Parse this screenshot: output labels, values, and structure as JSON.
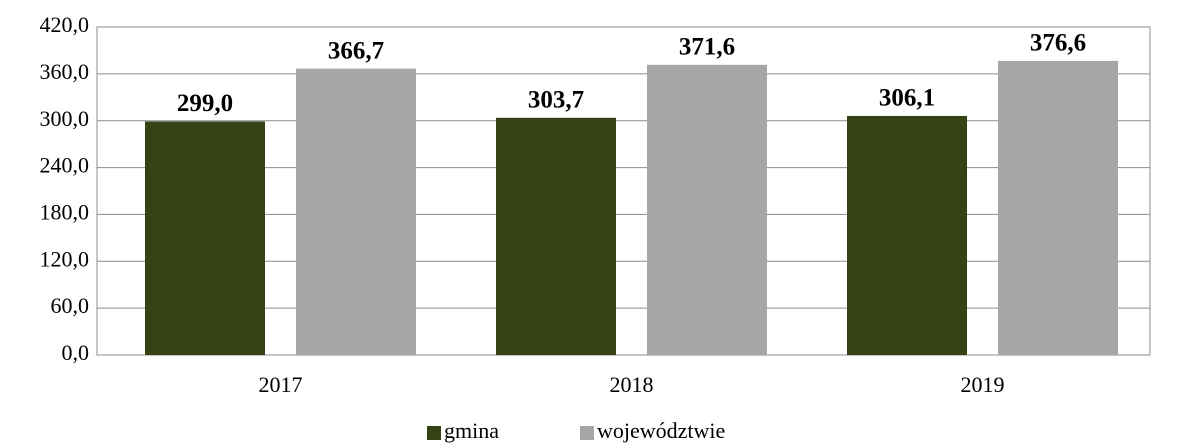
{
  "chart_data": {
    "type": "bar",
    "categories": [
      "2017",
      "2018",
      "2019"
    ],
    "series": [
      {
        "name": "gmina",
        "color": "#344214",
        "values": [
          299.0,
          303.7,
          306.1
        ],
        "value_labels": [
          "299,0",
          "303,7",
          "306,1"
        ]
      },
      {
        "name": "województwie",
        "color": "#a6a6a6",
        "values": [
          366.7,
          371.6,
          376.6
        ],
        "value_labels": [
          "366,7",
          "371,6",
          "376,6"
        ]
      }
    ],
    "ylim": [
      0,
      420
    ],
    "yticks": [
      {
        "value": 0,
        "label": "0,0"
      },
      {
        "value": 60,
        "label": "60,0"
      },
      {
        "value": 120,
        "label": "120,0"
      },
      {
        "value": 180,
        "label": "180,0"
      },
      {
        "value": 240,
        "label": "240,0"
      },
      {
        "value": 300,
        "label": "300,0"
      },
      {
        "value": 360,
        "label": "360,0"
      },
      {
        "value": 420,
        "label": "420,0"
      }
    ],
    "grid": true,
    "legend": "bottom"
  }
}
